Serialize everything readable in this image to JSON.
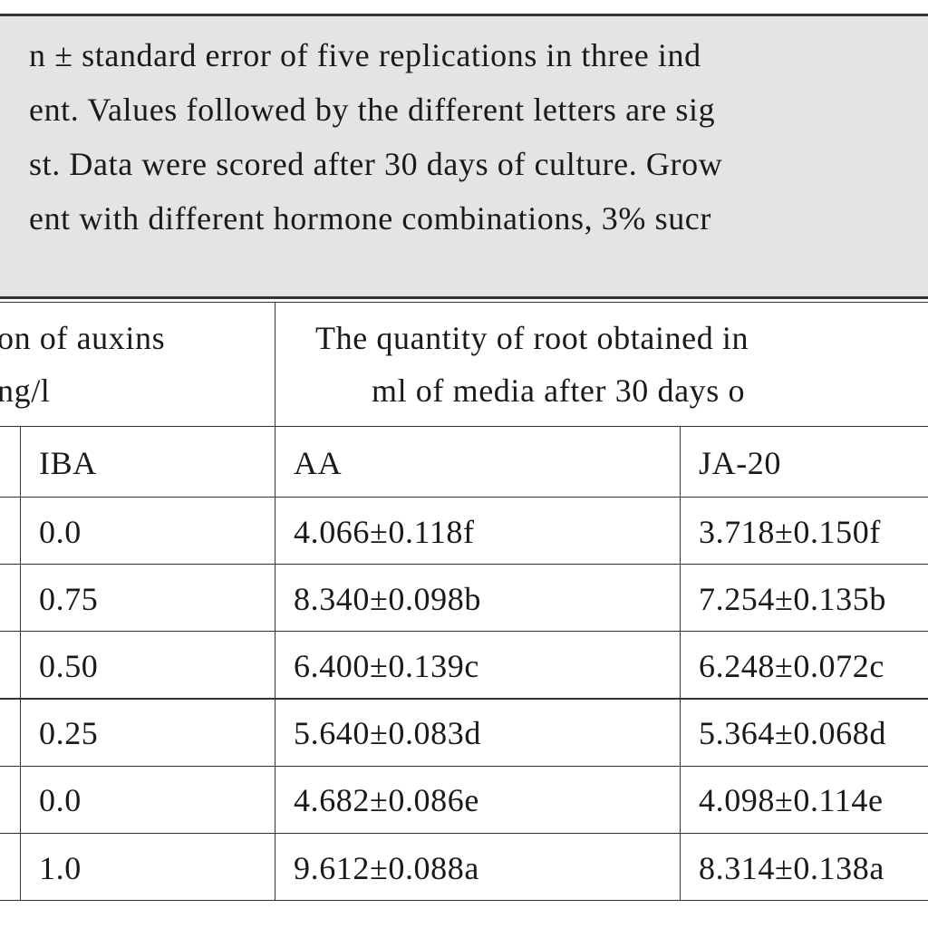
{
  "caption": {
    "lines": [
      "n ± standard error of five replications in three ind",
      "ent. Values followed by the different letters are sig",
      "st. Data were scored after 30 days of culture. Grow",
      "ent with different hormone combinations, 3% sucr"
    ]
  },
  "table": {
    "header": {
      "left": [
        "on of auxins",
        "ng/l"
      ],
      "right": [
        "The quantity of root obtained in",
        "ml of media  after 30 days o"
      ]
    },
    "columns": [
      "IBA",
      "AA",
      "JA-20"
    ],
    "rows": [
      [
        "0.0",
        "4.066±0.118f",
        "3.718±0.150f"
      ],
      [
        "0.75",
        "8.340±0.098b",
        "7.254±0.135b"
      ],
      [
        "0.50",
        "6.400±0.139c",
        "6.248±0.072c"
      ],
      [
        "0.25",
        "5.640±0.083d",
        "5.364±0.068d"
      ],
      [
        "0.0",
        "4.682±0.086e",
        "4.098±0.114e"
      ],
      [
        "1.0",
        "9.612±0.088a",
        "8.314±0.138a"
      ]
    ]
  }
}
